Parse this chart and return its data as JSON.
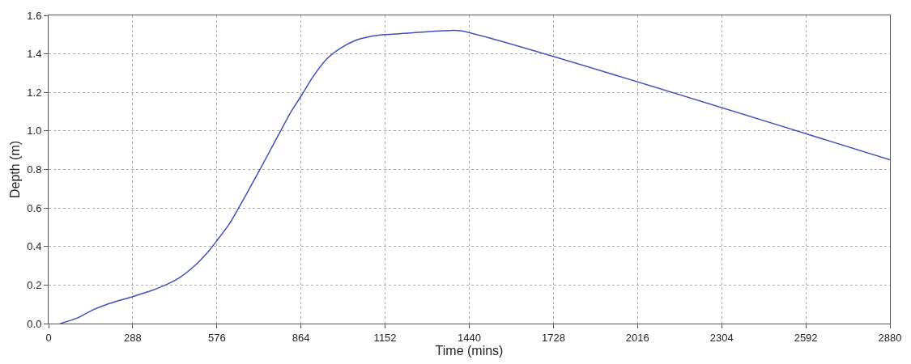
{
  "chart_data": {
    "type": "line",
    "xlabel": "Time (mins)",
    "ylabel": "Depth (m)",
    "x": [
      40,
      100,
      150,
      200,
      288,
      350,
      400,
      450,
      500,
      550,
      576,
      620,
      680,
      720,
      780,
      830,
      864,
      900,
      950,
      1000,
      1050,
      1100,
      1152,
      1250,
      1350,
      1410,
      2880
    ],
    "series": [
      {
        "color": "#4050b8",
        "values": [
          0,
          0.03,
          0.07,
          0.1,
          0.14,
          0.17,
          0.2,
          0.24,
          0.3,
          0.38,
          0.43,
          0.52,
          0.68,
          0.79,
          0.96,
          1.1,
          1.18,
          1.27,
          1.37,
          1.43,
          1.47,
          1.49,
          1.5,
          1.51,
          1.52,
          1.52,
          0.85
        ]
      }
    ],
    "xlim": [
      0,
      2880
    ],
    "xticks": [
      0,
      288,
      576,
      864,
      1152,
      1440,
      1728,
      2016,
      2304,
      2592,
      2880
    ],
    "ylim": [
      0,
      1.6
    ],
    "yticks": [
      {
        "value": 0,
        "label": "0.0"
      },
      0.2,
      0.4,
      0.6,
      0.8,
      {
        "value": 1,
        "label": "1.0"
      },
      1.2,
      1.4,
      1.6
    ],
    "grid": true,
    "legend": false
  }
}
